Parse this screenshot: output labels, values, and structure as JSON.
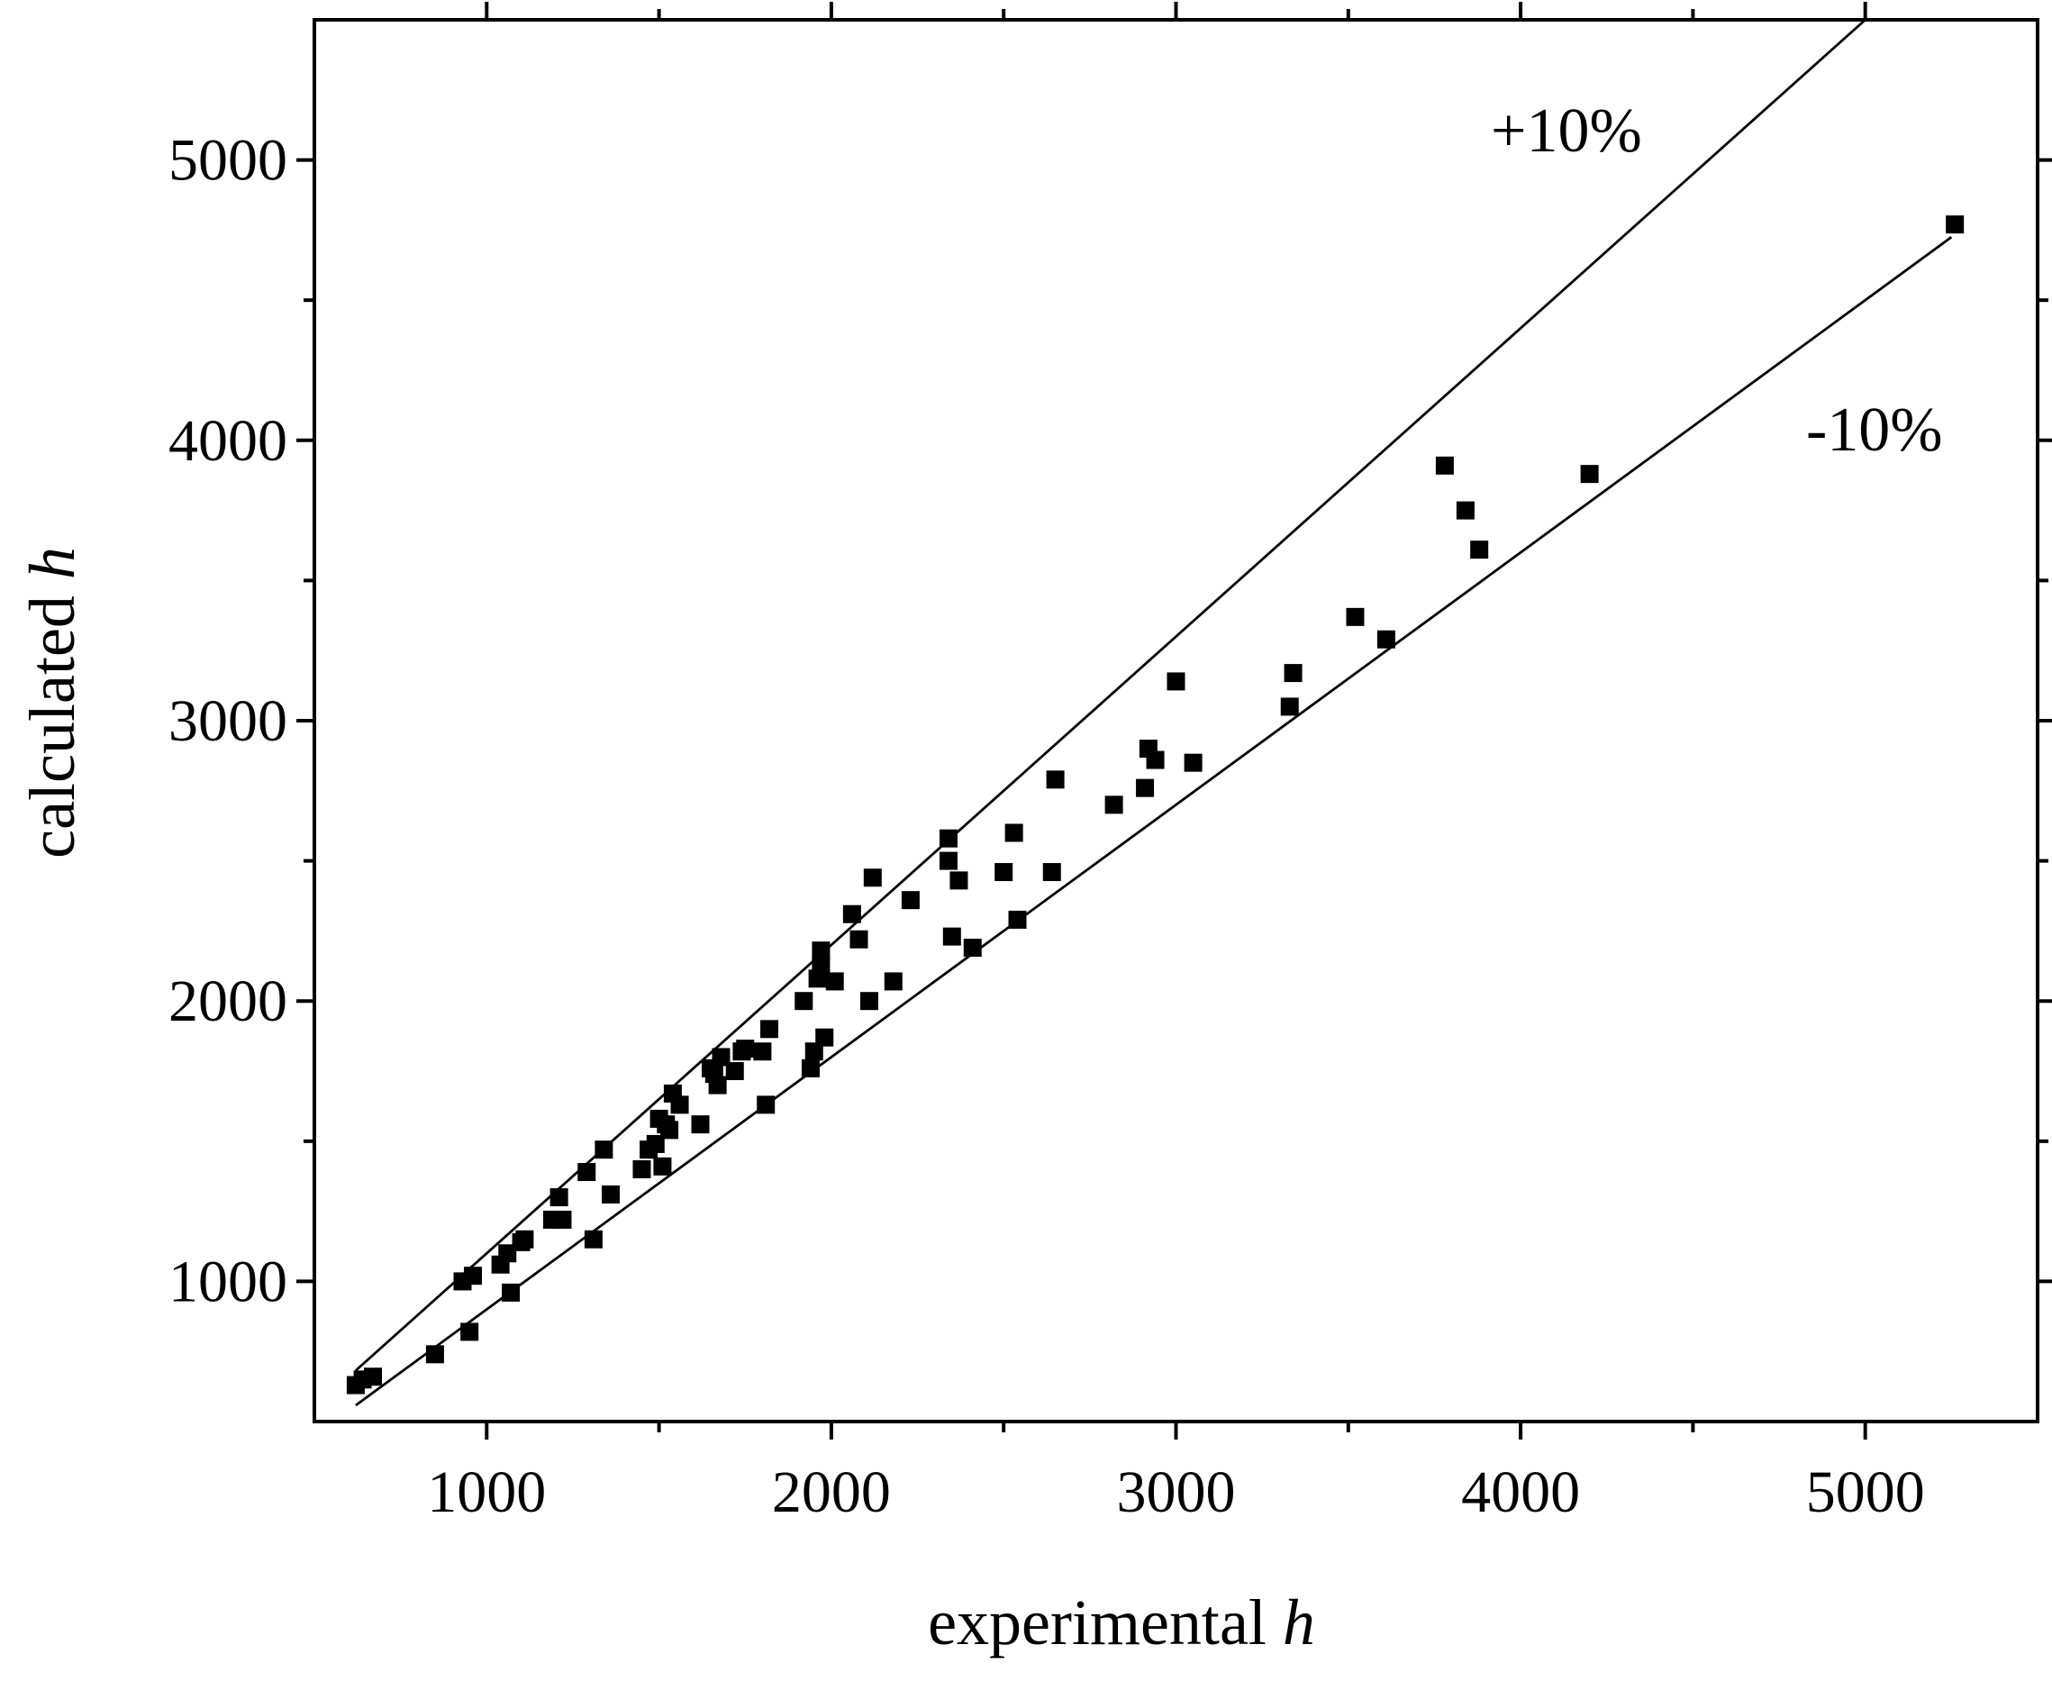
{
  "chart_data": {
    "type": "scatter",
    "xlabel": "experimental ",
    "xlabel_italic": "h",
    "ylabel": "calculated ",
    "ylabel_italic": "h",
    "xlim": [
      500,
      5500
    ],
    "ylim": [
      500,
      5500
    ],
    "x_ticks": [
      1000,
      2000,
      3000,
      4000,
      5000
    ],
    "y_ticks": [
      1000,
      2000,
      3000,
      4000,
      5000
    ],
    "x_tick_labels": [
      "1000",
      "2000",
      "3000",
      "4000",
      "5000"
    ],
    "y_tick_labels": [
      "1000",
      "2000",
      "3000",
      "4000",
      "5000"
    ],
    "minor_tick_step": 500,
    "grid": false,
    "reference_lines": [
      {
        "label": "+10%",
        "factor": 1.1,
        "x_range": [
          620,
          5000
        ]
      },
      {
        "label": "-10%",
        "factor": 0.9,
        "x_range": [
          620,
          5250
        ]
      }
    ],
    "points": [
      {
        "x": 620,
        "y": 630
      },
      {
        "x": 640,
        "y": 650
      },
      {
        "x": 670,
        "y": 660
      },
      {
        "x": 850,
        "y": 740
      },
      {
        "x": 930,
        "y": 1000
      },
      {
        "x": 960,
        "y": 1020
      },
      {
        "x": 950,
        "y": 820
      },
      {
        "x": 1040,
        "y": 1060
      },
      {
        "x": 1060,
        "y": 1100
      },
      {
        "x": 1070,
        "y": 960
      },
      {
        "x": 1100,
        "y": 1140
      },
      {
        "x": 1110,
        "y": 1150
      },
      {
        "x": 1190,
        "y": 1220
      },
      {
        "x": 1210,
        "y": 1300
      },
      {
        "x": 1220,
        "y": 1220
      },
      {
        "x": 1290,
        "y": 1390
      },
      {
        "x": 1310,
        "y": 1150
      },
      {
        "x": 1340,
        "y": 1470
      },
      {
        "x": 1360,
        "y": 1310
      },
      {
        "x": 1450,
        "y": 1400
      },
      {
        "x": 1470,
        "y": 1470
      },
      {
        "x": 1490,
        "y": 1490
      },
      {
        "x": 1500,
        "y": 1580
      },
      {
        "x": 1510,
        "y": 1410
      },
      {
        "x": 1520,
        "y": 1560
      },
      {
        "x": 1530,
        "y": 1540
      },
      {
        "x": 1540,
        "y": 1670
      },
      {
        "x": 1560,
        "y": 1630
      },
      {
        "x": 1620,
        "y": 1560
      },
      {
        "x": 1650,
        "y": 1760
      },
      {
        "x": 1660,
        "y": 1740
      },
      {
        "x": 1670,
        "y": 1700
      },
      {
        "x": 1680,
        "y": 1800
      },
      {
        "x": 1720,
        "y": 1750
      },
      {
        "x": 1740,
        "y": 1820
      },
      {
        "x": 1750,
        "y": 1830
      },
      {
        "x": 1800,
        "y": 1820
      },
      {
        "x": 1810,
        "y": 1630
      },
      {
        "x": 1820,
        "y": 1900
      },
      {
        "x": 1920,
        "y": 2000
      },
      {
        "x": 1940,
        "y": 1760
      },
      {
        "x": 1950,
        "y": 1820
      },
      {
        "x": 1960,
        "y": 2080
      },
      {
        "x": 1970,
        "y": 2130
      },
      {
        "x": 1970,
        "y": 2180
      },
      {
        "x": 1980,
        "y": 1870
      },
      {
        "x": 2010,
        "y": 2070
      },
      {
        "x": 2060,
        "y": 2310
      },
      {
        "x": 2080,
        "y": 2220
      },
      {
        "x": 2110,
        "y": 2000
      },
      {
        "x": 2120,
        "y": 2440
      },
      {
        "x": 2180,
        "y": 2070
      },
      {
        "x": 2230,
        "y": 2360
      },
      {
        "x": 2340,
        "y": 2580
      },
      {
        "x": 2340,
        "y": 2500
      },
      {
        "x": 2350,
        "y": 2230
      },
      {
        "x": 2370,
        "y": 2430
      },
      {
        "x": 2410,
        "y": 2190
      },
      {
        "x": 2500,
        "y": 2460
      },
      {
        "x": 2530,
        "y": 2600
      },
      {
        "x": 2540,
        "y": 2290
      },
      {
        "x": 2640,
        "y": 2460
      },
      {
        "x": 2650,
        "y": 2790
      },
      {
        "x": 2820,
        "y": 2700
      },
      {
        "x": 2910,
        "y": 2760
      },
      {
        "x": 2920,
        "y": 2900
      },
      {
        "x": 2940,
        "y": 2860
      },
      {
        "x": 3000,
        "y": 3140
      },
      {
        "x": 3050,
        "y": 2850
      },
      {
        "x": 3330,
        "y": 3050
      },
      {
        "x": 3340,
        "y": 3170
      },
      {
        "x": 3520,
        "y": 3370
      },
      {
        "x": 3610,
        "y": 3290
      },
      {
        "x": 3780,
        "y": 3910
      },
      {
        "x": 3840,
        "y": 3750
      },
      {
        "x": 3880,
        "y": 3610
      },
      {
        "x": 4200,
        "y": 3880
      },
      {
        "x": 5260,
        "y": 4770
      }
    ]
  }
}
